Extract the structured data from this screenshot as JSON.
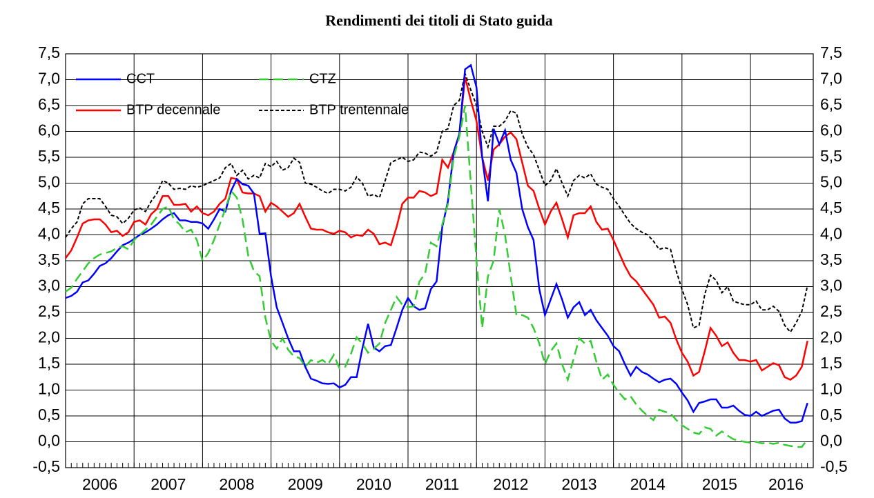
{
  "chart_data": {
    "type": "line",
    "title": "Rendimenti dei titoli di Stato guida",
    "x": [
      2006,
      2006.083,
      2006.167,
      2006.25,
      2006.333,
      2006.417,
      2006.5,
      2006.583,
      2006.667,
      2006.75,
      2006.833,
      2006.917,
      2007,
      2007.083,
      2007.167,
      2007.25,
      2007.333,
      2007.417,
      2007.5,
      2007.583,
      2007.667,
      2007.75,
      2007.833,
      2007.917,
      2008,
      2008.083,
      2008.167,
      2008.25,
      2008.333,
      2008.417,
      2008.5,
      2008.583,
      2008.667,
      2008.75,
      2008.833,
      2008.917,
      2009,
      2009.083,
      2009.167,
      2009.25,
      2009.333,
      2009.417,
      2009.5,
      2009.583,
      2009.667,
      2009.75,
      2009.833,
      2009.917,
      2010,
      2010.083,
      2010.167,
      2010.25,
      2010.333,
      2010.417,
      2010.5,
      2010.583,
      2010.667,
      2010.75,
      2010.833,
      2010.917,
      2011,
      2011.083,
      2011.167,
      2011.25,
      2011.333,
      2011.417,
      2011.5,
      2011.583,
      2011.667,
      2011.75,
      2011.833,
      2011.917,
      2012,
      2012.083,
      2012.167,
      2012.25,
      2012.333,
      2012.417,
      2012.5,
      2012.583,
      2012.667,
      2012.75,
      2012.833,
      2012.917,
      2013,
      2013.083,
      2013.167,
      2013.25,
      2013.333,
      2013.417,
      2013.5,
      2013.583,
      2013.667,
      2013.75,
      2013.833,
      2013.917,
      2014,
      2014.083,
      2014.167,
      2014.25,
      2014.333,
      2014.417,
      2014.5,
      2014.583,
      2014.667,
      2014.75,
      2014.833,
      2014.917,
      2015,
      2015.083,
      2015.167,
      2015.25,
      2015.333,
      2015.417,
      2015.5,
      2015.583,
      2015.667,
      2015.75,
      2015.833,
      2015.917,
      2016,
      2016.083,
      2016.167,
      2016.25,
      2016.333,
      2016.417,
      2016.5,
      2016.583,
      2016.667,
      2016.75,
      2016.833
    ],
    "series": [
      {
        "name": "CCT",
        "color": "#0000ff",
        "style": "solid",
        "values": [
          2.78,
          2.82,
          2.9,
          3.08,
          3.12,
          3.25,
          3.4,
          3.45,
          3.55,
          3.68,
          3.8,
          3.85,
          3.92,
          4.0,
          4.05,
          4.12,
          4.2,
          4.3,
          4.38,
          4.42,
          4.28,
          4.28,
          4.25,
          4.25,
          4.22,
          4.12,
          4.3,
          4.5,
          4.45,
          4.85,
          5.08,
          4.98,
          4.95,
          4.8,
          4.02,
          4.03,
          3.2,
          2.6,
          2.3,
          2.0,
          1.75,
          1.75,
          1.45,
          1.22,
          1.18,
          1.13,
          1.12,
          1.13,
          1.05,
          1.1,
          1.25,
          1.25,
          1.8,
          2.28,
          1.82,
          1.75,
          1.85,
          1.87,
          2.2,
          2.55,
          2.78,
          2.62,
          2.55,
          2.58,
          2.95,
          3.1,
          4.15,
          4.65,
          5.6,
          5.95,
          7.2,
          7.28,
          6.85,
          5.5,
          4.65,
          6.05,
          5.75,
          6.02,
          5.45,
          5.2,
          4.5,
          4.15,
          3.9,
          2.95,
          2.45,
          2.75,
          3.05,
          2.75,
          2.4,
          2.6,
          2.7,
          2.45,
          2.55,
          2.35,
          2.2,
          2.05,
          1.85,
          1.75,
          1.5,
          1.28,
          1.45,
          1.35,
          1.3,
          1.22,
          1.15,
          1.2,
          1.22,
          1.12,
          0.95,
          0.8,
          0.58,
          0.75,
          0.78,
          0.82,
          0.82,
          0.66,
          0.66,
          0.7,
          0.6,
          0.52,
          0.5,
          0.58,
          0.5,
          0.55,
          0.6,
          0.62,
          0.45,
          0.37,
          0.37,
          0.4,
          0.75
        ]
      },
      {
        "name": "CTZ",
        "color": "#33cc33",
        "style": "dashed",
        "values": [
          2.9,
          2.98,
          3.15,
          3.3,
          3.45,
          3.55,
          3.62,
          3.65,
          3.68,
          3.75,
          3.78,
          3.72,
          3.9,
          4.0,
          4.1,
          4.2,
          4.35,
          4.5,
          4.55,
          4.3,
          4.2,
          4.05,
          4.1,
          3.9,
          3.5,
          3.65,
          3.9,
          4.2,
          4.5,
          4.85,
          4.72,
          4.3,
          3.6,
          3.3,
          3.2,
          2.4,
          1.95,
          1.8,
          2.0,
          1.78,
          1.65,
          1.62,
          1.45,
          1.58,
          1.53,
          1.58,
          1.5,
          1.68,
          1.42,
          1.45,
          1.7,
          2.02,
          1.9,
          1.72,
          1.8,
          1.9,
          2.3,
          2.55,
          2.8,
          2.65,
          2.6,
          2.62,
          3.1,
          3.25,
          3.85,
          3.78,
          4.2,
          4.6,
          5.5,
          5.9,
          6.5,
          5.0,
          3.5,
          2.2,
          3.2,
          3.5,
          4.5,
          4.0,
          3.2,
          2.45,
          2.45,
          2.4,
          2.2,
          1.9,
          1.5,
          1.75,
          1.9,
          1.5,
          1.2,
          1.6,
          2.0,
          1.9,
          1.95,
          1.55,
          1.2,
          1.3,
          1.1,
          0.95,
          0.82,
          0.88,
          0.72,
          0.6,
          0.5,
          0.42,
          0.62,
          0.58,
          0.55,
          0.42,
          0.32,
          0.25,
          0.18,
          0.15,
          0.28,
          0.25,
          0.12,
          0.2,
          0.12,
          0.05,
          0.02,
          0.0,
          -0.02,
          0.0,
          -0.03,
          -0.02,
          -0.04,
          -0.02,
          -0.06,
          -0.08,
          -0.1,
          -0.1,
          0.05
        ]
      },
      {
        "name": "BTP decennale",
        "color": "#ff0000",
        "style": "solid",
        "values": [
          3.55,
          3.7,
          3.95,
          4.22,
          4.28,
          4.3,
          4.3,
          4.2,
          4.05,
          4.08,
          3.98,
          4.05,
          4.25,
          4.28,
          4.2,
          4.4,
          4.5,
          4.75,
          4.75,
          4.58,
          4.58,
          4.6,
          4.45,
          4.55,
          4.42,
          4.38,
          4.45,
          4.6,
          4.7,
          5.1,
          5.08,
          4.82,
          4.8,
          4.8,
          4.75,
          4.45,
          4.62,
          4.55,
          4.45,
          4.35,
          4.42,
          4.6,
          4.35,
          4.12,
          4.1,
          4.1,
          4.05,
          4.02,
          4.08,
          4.05,
          3.95,
          4.0,
          3.98,
          4.1,
          4.02,
          3.82,
          3.85,
          3.8,
          4.15,
          4.6,
          4.72,
          4.72,
          4.85,
          4.82,
          4.75,
          4.8,
          5.45,
          5.3,
          5.6,
          5.95,
          7.05,
          6.6,
          6.2,
          5.5,
          5.05,
          5.65,
          5.75,
          5.9,
          5.98,
          5.85,
          5.4,
          4.95,
          4.85,
          4.5,
          4.2,
          4.45,
          4.62,
          4.3,
          3.95,
          4.38,
          4.42,
          4.42,
          4.55,
          4.25,
          4.1,
          4.12,
          3.9,
          3.65,
          3.4,
          3.2,
          3.1,
          2.95,
          2.8,
          2.65,
          2.4,
          2.42,
          2.3,
          1.98,
          1.72,
          1.55,
          1.28,
          1.35,
          1.75,
          2.2,
          2.05,
          1.85,
          1.92,
          1.72,
          1.58,
          1.58,
          1.55,
          1.58,
          1.38,
          1.45,
          1.52,
          1.48,
          1.25,
          1.2,
          1.28,
          1.45,
          1.95
        ]
      },
      {
        "name": "BTP trentennale",
        "color": "#000000",
        "style": "dotted",
        "values": [
          3.95,
          4.12,
          4.25,
          4.6,
          4.7,
          4.7,
          4.7,
          4.55,
          4.38,
          4.35,
          4.22,
          4.32,
          4.48,
          4.52,
          4.45,
          4.65,
          4.8,
          5.05,
          5.0,
          4.88,
          4.9,
          4.88,
          4.95,
          4.92,
          4.95,
          5.0,
          5.05,
          5.1,
          5.3,
          5.38,
          5.15,
          5.25,
          5.08,
          5.15,
          5.1,
          5.38,
          5.32,
          5.42,
          5.25,
          5.3,
          5.48,
          5.4,
          5.0,
          4.98,
          4.92,
          4.85,
          4.8,
          4.88,
          4.88,
          4.85,
          4.92,
          5.12,
          5.0,
          4.75,
          4.78,
          4.72,
          5.05,
          5.4,
          5.45,
          5.5,
          5.42,
          5.45,
          5.6,
          5.58,
          5.52,
          5.6,
          6.0,
          6.05,
          6.5,
          6.6,
          7.12,
          6.8,
          6.5,
          6.0,
          5.7,
          6.1,
          6.1,
          6.2,
          6.4,
          6.35,
          5.95,
          5.7,
          5.55,
          5.25,
          4.95,
          5.05,
          5.28,
          5.0,
          4.75,
          5.05,
          5.15,
          5.1,
          5.18,
          4.98,
          4.92,
          4.88,
          4.7,
          4.55,
          4.38,
          4.22,
          4.12,
          4.05,
          4.0,
          3.88,
          3.72,
          3.75,
          3.72,
          3.3,
          2.95,
          2.65,
          2.2,
          2.25,
          2.85,
          3.22,
          3.12,
          2.88,
          3.0,
          2.72,
          2.68,
          2.65,
          2.65,
          2.72,
          2.55,
          2.55,
          2.62,
          2.52,
          2.25,
          2.12,
          2.3,
          2.52,
          3.02
        ]
      }
    ],
    "xlim": [
      2006,
      2016.917
    ],
    "xticks": [
      {
        "value": 2006.5,
        "label": "2006"
      },
      {
        "value": 2007.5,
        "label": "2007"
      },
      {
        "value": 2008.5,
        "label": "2008"
      },
      {
        "value": 2009.5,
        "label": "2009"
      },
      {
        "value": 2010.5,
        "label": "2010"
      },
      {
        "value": 2011.5,
        "label": "2011"
      },
      {
        "value": 2012.5,
        "label": "2012"
      },
      {
        "value": 2013.5,
        "label": "2013"
      },
      {
        "value": 2014.5,
        "label": "2014"
      },
      {
        "value": 2015.55,
        "label": "2015"
      },
      {
        "value": 2016.52,
        "label": "2016"
      }
    ],
    "xgrid": [
      2007,
      2008,
      2009,
      2010,
      2011,
      2012,
      2013,
      2014,
      2015,
      2016
    ],
    "ylim": [
      -0.5,
      7.5
    ],
    "yticks": [
      {
        "value": -0.5,
        "label": "-0,5"
      },
      {
        "value": 0,
        "label": "0,0"
      },
      {
        "value": 0.5,
        "label": "0,5"
      },
      {
        "value": 1,
        "label": "1,0"
      },
      {
        "value": 1.5,
        "label": "1,5"
      },
      {
        "value": 2,
        "label": "2,0"
      },
      {
        "value": 2.5,
        "label": "2,5"
      },
      {
        "value": 3,
        "label": "3,0"
      },
      {
        "value": 3.5,
        "label": "3,5"
      },
      {
        "value": 4,
        "label": "4,0"
      },
      {
        "value": 4.5,
        "label": "4,5"
      },
      {
        "value": 5,
        "label": "5,0"
      },
      {
        "value": 5.5,
        "label": "5,5"
      },
      {
        "value": 6,
        "label": "6,0"
      },
      {
        "value": 6.5,
        "label": "6,5"
      },
      {
        "value": 7,
        "label": "7,0"
      },
      {
        "value": 7.5,
        "label": "7,5"
      }
    ],
    "grid": true,
    "legend": "top-left"
  }
}
